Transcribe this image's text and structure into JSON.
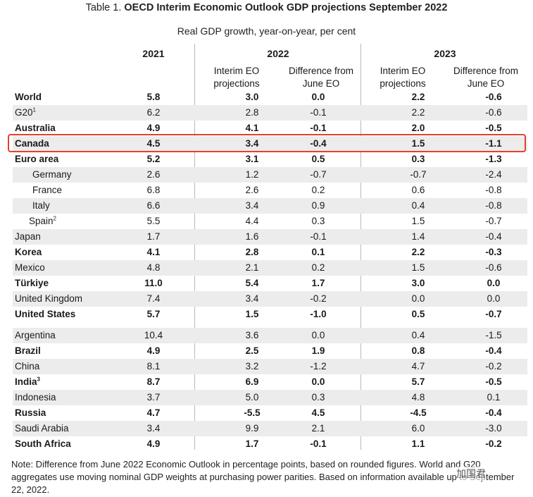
{
  "title_prefix": "Table 1. ",
  "title_bold": "OECD Interim Economic Outlook GDP projections September 2022",
  "subtitle": "Real GDP growth, year-on-year, per cent",
  "years": {
    "y2021": "2021",
    "y2022": "2022",
    "y2023": "2023"
  },
  "subheads": {
    "interim": [
      "Interim EO",
      "projections"
    ],
    "difference": [
      "Difference from",
      "June EO"
    ]
  },
  "rows": [
    {
      "name": "World",
      "v2021": "5.8",
      "i2022": "3.0",
      "d2022": "0.0",
      "i2023": "2.2",
      "d2023": "-0.6"
    },
    {
      "name": "G20",
      "sup": "1",
      "v2021": "6.2",
      "i2022": "2.8",
      "d2022": "-0.1",
      "i2023": "2.2",
      "d2023": "-0.6"
    },
    {
      "name": "Australia",
      "v2021": "4.9",
      "i2022": "4.1",
      "d2022": "-0.1",
      "i2023": "2.0",
      "d2023": "-0.5"
    },
    {
      "name": "Canada",
      "v2021": "4.5",
      "i2022": "3.4",
      "d2022": "-0.4",
      "i2023": "1.5",
      "d2023": "-1.1"
    },
    {
      "name": "Euro area",
      "v2021": "5.2",
      "i2022": "3.1",
      "d2022": "0.5",
      "i2023": "0.3",
      "d2023": "-1.3"
    },
    {
      "name": "Germany",
      "v2021": "2.6",
      "i2022": "1.2",
      "d2022": "-0.7",
      "i2023": "-0.7",
      "d2023": "-2.4"
    },
    {
      "name": "France",
      "v2021": "6.8",
      "i2022": "2.6",
      "d2022": "0.2",
      "i2023": "0.6",
      "d2023": "-0.8"
    },
    {
      "name": "Italy",
      "v2021": "6.6",
      "i2022": "3.4",
      "d2022": "0.9",
      "i2023": "0.4",
      "d2023": "-0.8"
    },
    {
      "name": "Spain",
      "sup": "2",
      "v2021": "5.5",
      "i2022": "4.4",
      "d2022": "0.3",
      "i2023": "1.5",
      "d2023": "-0.7"
    },
    {
      "name": "Japan",
      "v2021": "1.7",
      "i2022": "1.6",
      "d2022": "-0.1",
      "i2023": "1.4",
      "d2023": "-0.4"
    },
    {
      "name": "Korea",
      "v2021": "4.1",
      "i2022": "2.8",
      "d2022": "0.1",
      "i2023": "2.2",
      "d2023": "-0.3"
    },
    {
      "name": "Mexico",
      "v2021": "4.8",
      "i2022": "2.1",
      "d2022": "0.2",
      "i2023": "1.5",
      "d2023": "-0.6"
    },
    {
      "name": "Türkiye",
      "v2021": "11.0",
      "i2022": "5.4",
      "d2022": "1.7",
      "i2023": "3.0",
      "d2023": "0.0"
    },
    {
      "name": "United Kingdom",
      "v2021": "7.4",
      "i2022": "3.4",
      "d2022": "-0.2",
      "i2023": "0.0",
      "d2023": "0.0"
    },
    {
      "name": "United States",
      "v2021": "5.7",
      "i2022": "1.5",
      "d2022": "-1.0",
      "i2023": "0.5",
      "d2023": "-0.7"
    },
    {
      "name": "Argentina",
      "v2021": "10.4",
      "i2022": "3.6",
      "d2022": "0.0",
      "i2023": "0.4",
      "d2023": "-1.5"
    },
    {
      "name": "Brazil",
      "v2021": "4.9",
      "i2022": "2.5",
      "d2022": "1.9",
      "i2023": "0.8",
      "d2023": "-0.4"
    },
    {
      "name": "China",
      "v2021": "8.1",
      "i2022": "3.2",
      "d2022": "-1.2",
      "i2023": "4.7",
      "d2023": "-0.2"
    },
    {
      "name": "India",
      "sup": "3",
      "v2021": "8.7",
      "i2022": "6.9",
      "d2022": "0.0",
      "i2023": "5.7",
      "d2023": "-0.5"
    },
    {
      "name": "Indonesia",
      "v2021": "3.7",
      "i2022": "5.0",
      "d2022": "0.3",
      "i2023": "4.8",
      "d2023": "0.1"
    },
    {
      "name": "Russia",
      "v2021": "4.7",
      "i2022": "-5.5",
      "d2022": "4.5",
      "i2023": "-4.5",
      "d2023": "-0.4"
    },
    {
      "name": "Saudi Arabia",
      "v2021": "3.4",
      "i2022": "9.9",
      "d2022": "2.1",
      "i2023": "6.0",
      "d2023": "-3.0"
    },
    {
      "name": "South Africa",
      "v2021": "4.9",
      "i2022": "1.7",
      "d2022": "-0.1",
      "i2023": "1.1",
      "d2023": "-0.2"
    }
  ],
  "note": "Note: Difference from June 2022 Economic Outlook in percentage points, based on rounded figures. World and G20 aggregates use moving nominal GDP weights at purchasing power parities. Based on information available up to September 22, 2022.",
  "watermark": "加国君",
  "colors": {
    "highlight": "#e2412d",
    "shade": "#ececec",
    "divider": "#b9b9b9"
  }
}
